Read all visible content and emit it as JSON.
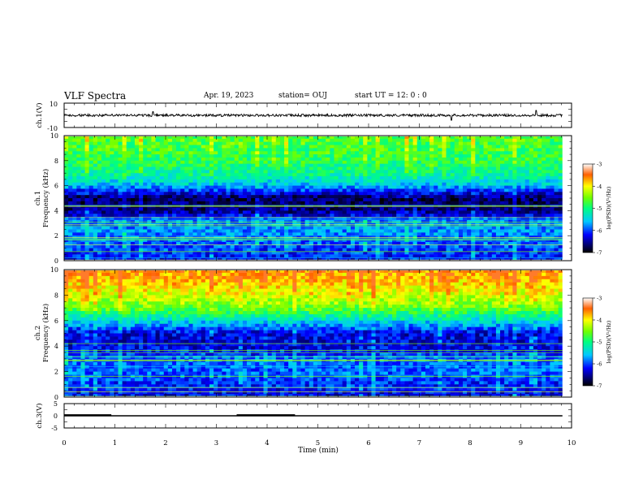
{
  "header": {
    "title": "VLF Spectra",
    "date": "Apr. 19, 2023",
    "station": "station= OUJ",
    "start_ut": "start  UT  =   12: 0  : 0"
  },
  "colorbar": {
    "ticks": [
      "-3",
      "-4",
      "-5",
      "-6",
      "-7"
    ],
    "label": "log(PSD)(V²/Hz)"
  },
  "chart_data": [
    {
      "type": "line",
      "name": "ch1-waveform",
      "ylabel": "ch.1(V)",
      "ylim": [
        -10,
        10
      ],
      "yticks": [
        "10",
        "-10"
      ],
      "xlim": [
        0,
        10
      ],
      "baseline": 0,
      "amplitude": 1,
      "spikes": [
        {
          "x": 1.75,
          "y": 3
        },
        {
          "x": 7.63,
          "y": -4
        },
        {
          "x": 9.3,
          "y": 4
        }
      ]
    },
    {
      "type": "heatmap",
      "name": "ch1-spectrogram",
      "ylabel": "ch.1",
      "ylabel2": "Frequency (kHz)",
      "ylim": [
        0,
        10
      ],
      "yticks": [
        "0",
        "2",
        "4",
        "6",
        "8",
        "10"
      ],
      "xlim": [
        0,
        9.82
      ],
      "log_psd_range": [
        -7,
        -3
      ],
      "profile": [
        {
          "f": 0,
          "v": -6.2
        },
        {
          "f": 1,
          "v": -6.0
        },
        {
          "f": 2,
          "v": -5.8
        },
        {
          "f": 3,
          "v": -5.7
        },
        {
          "f": 4,
          "v": -6.6
        },
        {
          "f": 5,
          "v": -6.7
        },
        {
          "f": 6,
          "v": -5.6
        },
        {
          "f": 7,
          "v": -5.1
        },
        {
          "f": 8,
          "v": -4.9
        },
        {
          "f": 9,
          "v": -4.8
        },
        {
          "f": 10,
          "v": -4.7
        }
      ]
    },
    {
      "type": "heatmap",
      "name": "ch2-spectrogram",
      "ylabel": "ch.2",
      "ylabel2": "Frequency (kHz)",
      "ylim": [
        0,
        10
      ],
      "yticks": [
        "0",
        "2",
        "4",
        "6",
        "8",
        "10"
      ],
      "xlim": [
        0,
        9.82
      ],
      "log_psd_range": [
        -7,
        -3
      ],
      "profile": [
        {
          "f": 0,
          "v": -6.3
        },
        {
          "f": 1,
          "v": -6.1
        },
        {
          "f": 2,
          "v": -5.9
        },
        {
          "f": 3,
          "v": -5.9
        },
        {
          "f": 4,
          "v": -6.3
        },
        {
          "f": 5,
          "v": -6.3
        },
        {
          "f": 6,
          "v": -5.4
        },
        {
          "f": 7,
          "v": -4.6
        },
        {
          "f": 8,
          "v": -4.2
        },
        {
          "f": 9,
          "v": -3.9
        },
        {
          "f": 10,
          "v": -3.7
        }
      ]
    },
    {
      "type": "line",
      "name": "ch3-signal",
      "ylabel": "ch.3(V)",
      "ylim": [
        -5,
        5
      ],
      "yticks": [
        "5",
        "0",
        "-5"
      ],
      "xlim": [
        0,
        10
      ],
      "level": 0,
      "pulses": [
        [
          0,
          0.93
        ],
        [
          3.4,
          4.55
        ]
      ],
      "xlabel": "Time  (min)",
      "xticks": [
        "0",
        "1",
        "2",
        "3",
        "4",
        "5",
        "6",
        "7",
        "8",
        "9",
        "10"
      ]
    }
  ]
}
